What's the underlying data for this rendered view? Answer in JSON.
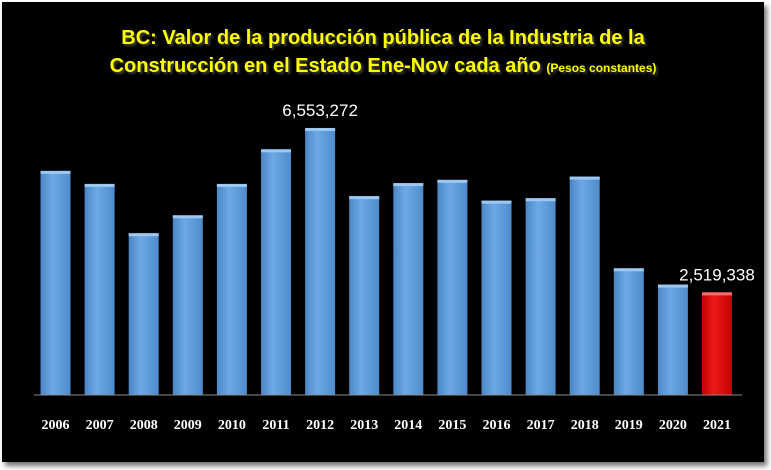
{
  "chart_data": {
    "type": "bar",
    "title_line1": "BC: Valor de la producción pública de la Industria de la",
    "title_line2": "Construcción en el Estado Ene-Nov cada año",
    "subtitle": "(Pesos constantes)",
    "categories": [
      "2006",
      "2007",
      "2008",
      "2009",
      "2010",
      "2011",
      "2012",
      "2013",
      "2014",
      "2015",
      "2016",
      "2017",
      "2018",
      "2019",
      "2020",
      "2021"
    ],
    "values": [
      5500000,
      5180000,
      3970000,
      4410000,
      5180000,
      6030000,
      6553272,
      4880000,
      5200000,
      5280000,
      4770000,
      4830000,
      5360000,
      3110000,
      2710000,
      2519338
    ],
    "data_labels": [
      {
        "category": "2012",
        "text": "6,553,272"
      },
      {
        "category": "2021",
        "text": "2,519,338"
      }
    ],
    "highlight": {
      "category": "2021",
      "color": "#dd0000"
    },
    "bar_color": "#5b9bd5",
    "ylim": [
      0,
      6700000
    ],
    "grid": false,
    "legend": "none"
  }
}
